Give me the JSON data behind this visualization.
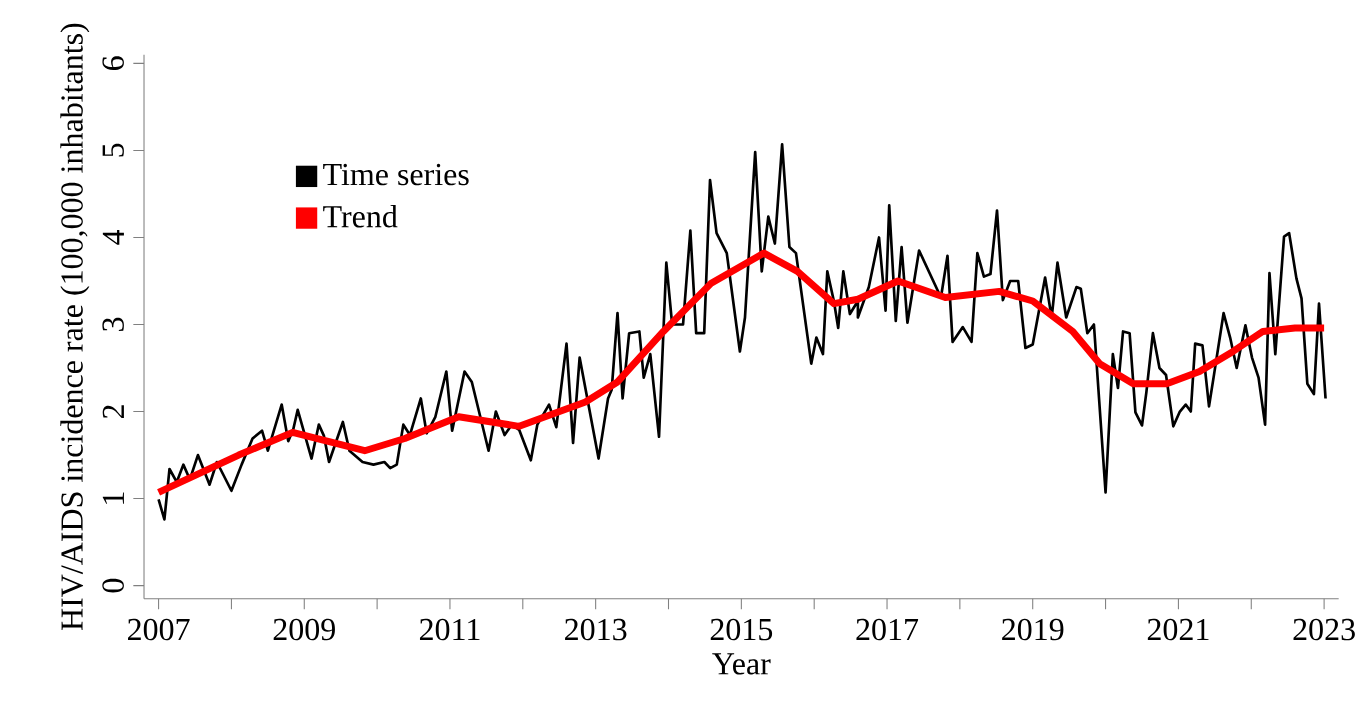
{
  "chart_data": {
    "type": "line",
    "xlabel": "Year",
    "ylabel": "HIV/AIDS incidence rate (100,000 inhabitants)",
    "xlim": [
      2006.8,
      2023.2
    ],
    "ylim": [
      -0.15,
      6.1
    ],
    "xticks": [
      2007,
      {
        "value": 2008,
        "label": null
      },
      2009,
      {
        "value": 2010,
        "label": null
      },
      2011,
      {
        "value": 2012,
        "label": null
      },
      2013,
      {
        "value": 2014,
        "label": null
      },
      2015,
      {
        "value": 2016,
        "label": null
      },
      2017,
      {
        "value": 2018,
        "label": null
      },
      2019,
      {
        "value": 2020,
        "label": null
      },
      2021,
      {
        "value": 2022,
        "label": null
      },
      2023
    ],
    "yticks": [
      0,
      1,
      2,
      3,
      4,
      5,
      6
    ],
    "legend": "top left",
    "marker": "none",
    "line_style": "solid",
    "series": [
      {
        "name": "Time series",
        "color": "#000000",
        "x": [
          2007.0,
          2007.08,
          2007.15,
          2007.25,
          2007.34,
          2007.43,
          2007.54,
          2007.7,
          2007.8,
          2008.0,
          2008.14,
          2008.29,
          2008.42,
          2008.5,
          2008.69,
          2008.78,
          2008.85,
          2008.91,
          2009.1,
          2009.2,
          2009.27,
          2009.34,
          2009.53,
          2009.62,
          2009.8,
          2009.95,
          2010.1,
          2010.18,
          2010.27,
          2010.36,
          2010.45,
          2010.6,
          2010.68,
          2010.8,
          2010.95,
          2011.03,
          2011.2,
          2011.3,
          2011.53,
          2011.63,
          2011.75,
          2011.85,
          2011.95,
          2012.11,
          2012.2,
          2012.36,
          2012.46,
          2012.6,
          2012.69,
          2012.78,
          2013.04,
          2013.17,
          2013.22,
          2013.3,
          2013.37,
          2013.46,
          2013.6,
          2013.66,
          2013.75,
          2013.87,
          2013.97,
          2014.05,
          2014.2,
          2014.3,
          2014.38,
          2014.49,
          2014.57,
          2014.66,
          2014.8,
          2014.98,
          2015.05,
          2015.19,
          2015.28,
          2015.37,
          2015.46,
          2015.56,
          2015.66,
          2015.75,
          2015.96,
          2016.03,
          2016.12,
          2016.18,
          2016.27,
          2016.33,
          2016.4,
          2016.49,
          2016.6,
          2016.6,
          2016.75,
          2016.89,
          2016.98,
          2017.03,
          2017.12,
          2017.2,
          2017.28,
          2017.44,
          2017.74,
          2017.83,
          2017.9,
          2018.04,
          2018.16,
          2018.24,
          2018.33,
          2018.42,
          2018.51,
          2018.59,
          2018.69,
          2018.8,
          2018.9,
          2019.0,
          2019.17,
          2019.26,
          2019.34,
          2019.46,
          2019.6,
          2019.66,
          2019.75,
          2019.84,
          2020.0,
          2020.1,
          2020.17,
          2020.24,
          2020.33,
          2020.41,
          2020.5,
          2020.56,
          2020.65,
          2020.74,
          2020.83,
          2020.93,
          2021.02,
          2021.1,
          2021.17,
          2021.23,
          2021.33,
          2021.42,
          2021.49,
          2021.62,
          2021.71,
          2021.8,
          2021.92,
          2022.01,
          2022.1,
          2022.19,
          2022.25,
          2022.33,
          2022.45,
          2022.52,
          2022.62,
          2022.69,
          2022.77,
          2022.86,
          2022.93,
          2023.02
        ],
        "values": [
          0.99,
          0.76,
          1.34,
          1.19,
          1.39,
          1.22,
          1.5,
          1.16,
          1.42,
          1.09,
          1.39,
          1.69,
          1.78,
          1.55,
          2.08,
          1.66,
          1.8,
          2.02,
          1.46,
          1.85,
          1.72,
          1.42,
          1.88,
          1.55,
          1.42,
          1.39,
          1.42,
          1.35,
          1.39,
          1.85,
          1.73,
          2.15,
          1.75,
          1.94,
          2.46,
          1.78,
          2.46,
          2.34,
          1.55,
          2.0,
          1.73,
          1.85,
          1.79,
          1.44,
          1.85,
          2.08,
          1.82,
          2.78,
          1.64,
          2.62,
          1.46,
          2.15,
          2.25,
          3.13,
          2.15,
          2.9,
          2.92,
          2.39,
          2.66,
          1.71,
          3.71,
          3.0,
          3.0,
          4.08,
          2.9,
          2.9,
          4.66,
          4.05,
          3.82,
          2.69,
          3.08,
          4.98,
          3.61,
          4.24,
          3.93,
          5.07,
          3.89,
          3.82,
          2.55,
          2.85,
          2.66,
          3.61,
          3.27,
          2.96,
          3.61,
          3.12,
          3.27,
          3.08,
          3.43,
          4.0,
          3.16,
          4.37,
          3.04,
          3.89,
          3.02,
          3.85,
          3.31,
          3.79,
          2.8,
          2.97,
          2.8,
          3.82,
          3.55,
          3.58,
          4.31,
          3.28,
          3.5,
          3.5,
          2.73,
          2.77,
          3.54,
          3.08,
          3.71,
          3.08,
          3.43,
          3.41,
          2.9,
          3.0,
          1.07,
          2.66,
          2.27,
          2.92,
          2.9,
          1.99,
          1.84,
          2.22,
          2.9,
          2.5,
          2.42,
          1.83,
          2.0,
          2.08,
          2.0,
          2.78,
          2.76,
          2.06,
          2.43,
          3.13,
          2.85,
          2.5,
          2.99,
          2.62,
          2.39,
          1.85,
          3.59,
          2.66,
          4.01,
          4.05,
          3.53,
          3.3,
          2.32,
          2.2,
          3.24,
          2.15
        ]
      },
      {
        "name": "Trend",
        "color": "#ff0000",
        "x": [
          2007.0,
          2008.1,
          2008.84,
          2009.83,
          2010.38,
          2011.12,
          2011.95,
          2012.86,
          2013.3,
          2013.93,
          2014.58,
          2015.31,
          2015.77,
          2016.27,
          2016.6,
          2017.15,
          2017.8,
          2018.54,
          2019.0,
          2019.55,
          2019.92,
          2020.38,
          2020.84,
          2021.29,
          2021.75,
          2022.16,
          2022.6,
          2023.0
        ],
        "values": [
          1.07,
          1.5,
          1.76,
          1.55,
          1.69,
          1.94,
          1.83,
          2.11,
          2.34,
          2.92,
          3.47,
          3.82,
          3.61,
          3.24,
          3.29,
          3.5,
          3.31,
          3.38,
          3.27,
          2.92,
          2.55,
          2.32,
          2.32,
          2.46,
          2.69,
          2.92,
          2.96,
          2.96
        ]
      }
    ]
  }
}
